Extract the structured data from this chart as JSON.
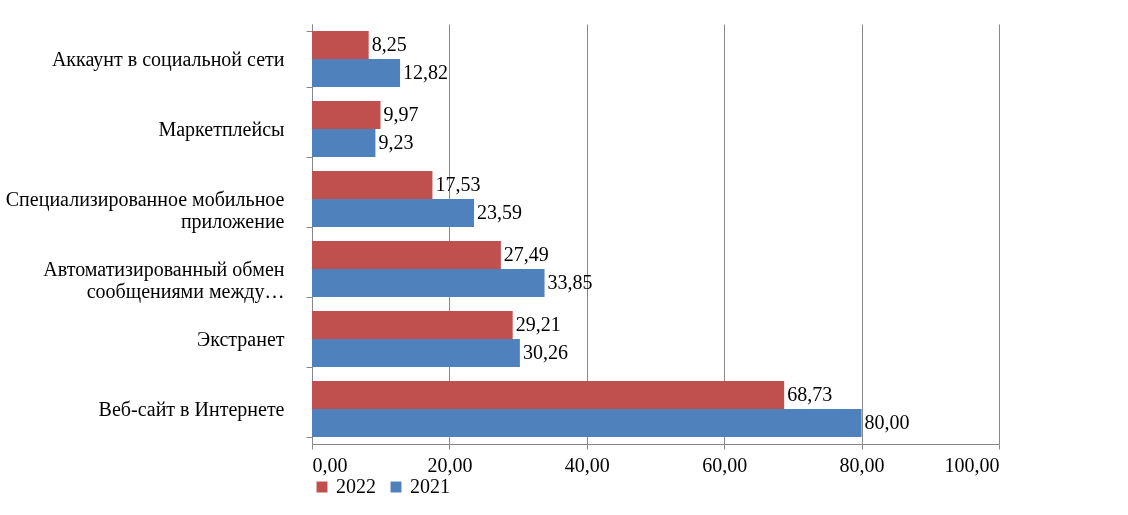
{
  "chart_data": {
    "type": "bar",
    "orientation": "horizontal",
    "categories": [
      "Аккаунт в социальной сети",
      "Маркетплейсы",
      "Специализированное мобильное приложение",
      "Автоматизированный обмен сообщениями между…",
      "Экстранет",
      "Веб-сайт в Интернете"
    ],
    "series": [
      {
        "name": "2022",
        "color": "#c0504d",
        "values": [
          8.25,
          9.97,
          17.53,
          27.49,
          29.21,
          68.73
        ],
        "value_labels": [
          "8,25",
          "9,97",
          "17,53",
          "27,49",
          "29,21",
          "68,73"
        ]
      },
      {
        "name": "2021",
        "color": "#4f81bd",
        "values": [
          12.82,
          9.23,
          23.59,
          33.85,
          30.26,
          80.0
        ],
        "value_labels": [
          "12,82",
          "9,23",
          "23,59",
          "33,85",
          "30,26",
          "80,00"
        ]
      }
    ],
    "xlim": [
      0,
      100
    ],
    "xticks": [
      {
        "value": 0,
        "label": "0,00"
      },
      {
        "value": 20,
        "label": "20,00"
      },
      {
        "value": 40,
        "label": "40,00"
      },
      {
        "value": 60,
        "label": "60,00"
      },
      {
        "value": 80,
        "label": "80,00"
      },
      {
        "value": 100,
        "label": "100,00"
      }
    ],
    "grid": "x",
    "legend": "bottom"
  }
}
